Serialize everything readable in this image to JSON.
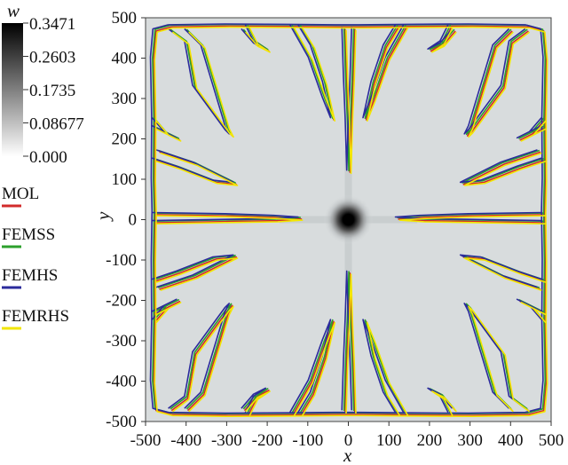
{
  "chart_data": {
    "type": "heatmap",
    "xlabel": "x",
    "ylabel": "y",
    "xlim": [
      -500,
      500
    ],
    "ylim": [
      -500,
      500
    ],
    "x_ticks": [
      -500,
      -400,
      -300,
      -200,
      -100,
      0,
      100,
      200,
      300,
      400,
      500
    ],
    "y_ticks": [
      500,
      400,
      300,
      200,
      100,
      0,
      -100,
      -200,
      -300,
      -400,
      -500
    ],
    "colorbar": {
      "title": "w",
      "range": [
        0.0,
        0.3471
      ],
      "tick_labels": [
        "0.3471",
        "0.2603",
        "0.1735",
        "0.08677",
        "0.000"
      ],
      "colors": [
        "#000000",
        "#ffffff"
      ]
    },
    "series": [
      {
        "name": "MOL",
        "color": "#d22b2b"
      },
      {
        "name": "FEMSS",
        "color": "#2ca02c"
      },
      {
        "name": "FEMHS",
        "color": "#2b2b9c"
      },
      {
        "name": "FEMRHS",
        "color": "#f2e600"
      }
    ],
    "background_color": "#d8dcdd",
    "center_value": 0.3471,
    "grid": false,
    "legend_position": "left"
  }
}
